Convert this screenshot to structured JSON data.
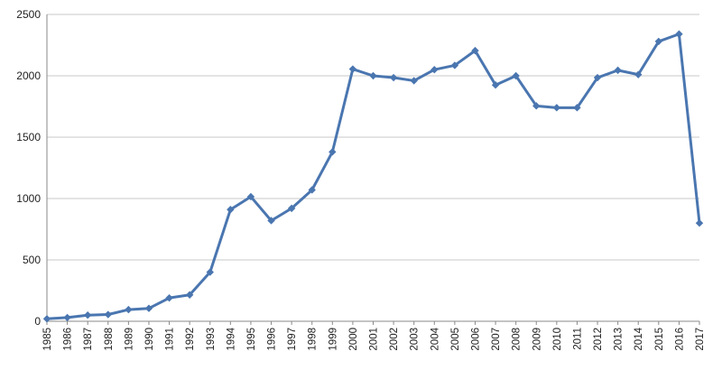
{
  "chart_data": {
    "type": "line",
    "title": "",
    "xlabel": "",
    "ylabel": "",
    "ylim": [
      0,
      2500
    ],
    "yticks": [
      0,
      500,
      1000,
      1500,
      2000,
      2500
    ],
    "grid": true,
    "legend": "none",
    "colors": {
      "line": "#4a76b0",
      "grid": "#c8c8c8",
      "axis": "#8a8a8a"
    },
    "categories": [
      "1985",
      "1986",
      "1987",
      "1988",
      "1989",
      "1990",
      "1991",
      "1992",
      "1993",
      "1994",
      "1995",
      "1996",
      "1997",
      "1998",
      "1999",
      "2000",
      "2001",
      "2002",
      "2003",
      "2004",
      "2005",
      "2006",
      "2007",
      "2008",
      "2009",
      "2010",
      "2011",
      "2012",
      "2013",
      "2014",
      "2015",
      "2016",
      "2017"
    ],
    "series": [
      {
        "values": [
          20,
          30,
          50,
          55,
          95,
          105,
          190,
          215,
          400,
          910,
          1015,
          820,
          920,
          1070,
          1380,
          2055,
          2000,
          1985,
          1960,
          2050,
          2085,
          2205,
          1925,
          2000,
          1755,
          1740,
          1740,
          1985,
          2045,
          2010,
          2280,
          2340,
          800
        ]
      }
    ]
  }
}
